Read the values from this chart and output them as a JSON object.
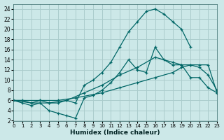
{
  "background_color": "#cce8e8",
  "grid_color": "#aacccc",
  "line_color": "#006666",
  "xlabel": "Humidex (Indice chaleur)",
  "xlim": [
    0,
    23
  ],
  "ylim": [
    2,
    25
  ],
  "xticks": [
    0,
    1,
    2,
    3,
    4,
    5,
    6,
    7,
    8,
    9,
    10,
    11,
    12,
    13,
    14,
    15,
    16,
    17,
    18,
    19,
    20,
    21,
    22,
    23
  ],
  "yticks": [
    2,
    4,
    6,
    8,
    10,
    12,
    14,
    16,
    18,
    20,
    22,
    24
  ],
  "s1_x": [
    0,
    1,
    2,
    3,
    4,
    5,
    6,
    7,
    8,
    9,
    10,
    11,
    12,
    13,
    14,
    15,
    16,
    17,
    18,
    19,
    20
  ],
  "s1_y": [
    6.0,
    6.0,
    5.5,
    6.0,
    5.5,
    5.5,
    6.0,
    5.5,
    9.0,
    10.0,
    11.5,
    13.5,
    16.5,
    19.5,
    21.5,
    23.5,
    24.0,
    23.0,
    21.5,
    20.0,
    16.5
  ],
  "s2_x": [
    0,
    1,
    2,
    3,
    4,
    5,
    6,
    7,
    8,
    9,
    10,
    11,
    12,
    13,
    14,
    15,
    16,
    17,
    18,
    19,
    20,
    21,
    22,
    23
  ],
  "s2_y": [
    6.0,
    5.5,
    5.0,
    5.5,
    4.0,
    3.5,
    3.0,
    2.5,
    6.5,
    7.0,
    8.0,
    9.5,
    11.5,
    14.0,
    12.0,
    11.5,
    16.5,
    14.0,
    13.0,
    13.0,
    10.5,
    10.5,
    8.5,
    7.5
  ],
  "s3_x": [
    0,
    3,
    5,
    7,
    10,
    12,
    14,
    16,
    18,
    19,
    20,
    21,
    22,
    23
  ],
  "s3_y": [
    6.0,
    6.0,
    6.0,
    6.5,
    7.5,
    8.5,
    9.5,
    10.5,
    11.5,
    12.5,
    13.0,
    13.0,
    13.0,
    7.5
  ],
  "s4_x": [
    0,
    2,
    4,
    6,
    8,
    10,
    12,
    14,
    16,
    18,
    19,
    20,
    21,
    22,
    23
  ],
  "s4_y": [
    6.0,
    5.5,
    5.5,
    6.0,
    7.5,
    9.0,
    11.0,
    12.5,
    14.5,
    13.5,
    13.0,
    13.0,
    12.5,
    11.0,
    8.0
  ]
}
